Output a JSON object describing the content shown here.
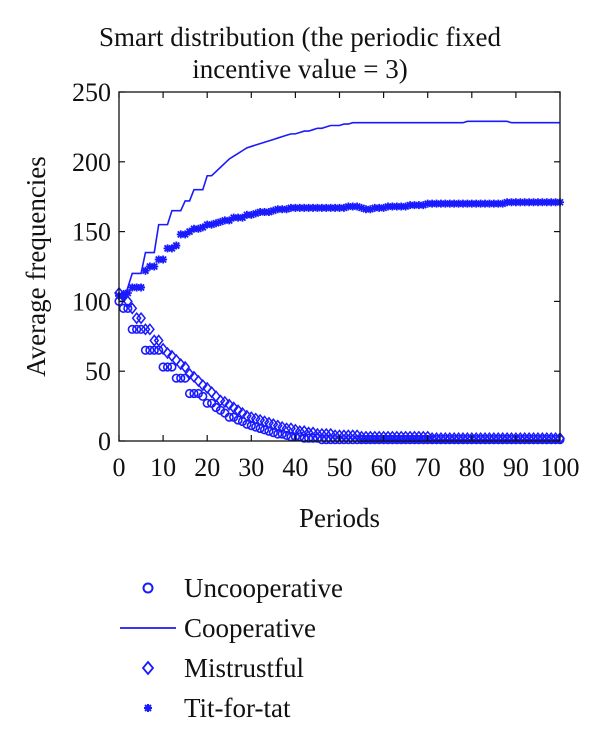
{
  "chart_data": {
    "type": "line",
    "title_line1": "Smart distribution (the periodic fixed",
    "title_line2": "incentive value = 3)",
    "xlabel": "Periods",
    "ylabel": "Average frequencies",
    "xlim": [
      0,
      100
    ],
    "ylim": [
      0,
      250
    ],
    "xticks": [
      0,
      10,
      20,
      30,
      40,
      50,
      60,
      70,
      80,
      90,
      100
    ],
    "yticks": [
      0,
      50,
      100,
      150,
      200,
      250
    ],
    "grid": false,
    "legend_position": "below",
    "color": "#1a1aff",
    "series": [
      {
        "name": "Uncooperative",
        "marker": "circle",
        "x": [
          0,
          1,
          2,
          3,
          4,
          5,
          6,
          7,
          8,
          9,
          10,
          11,
          12,
          13,
          14,
          15,
          16,
          17,
          18,
          19,
          20,
          21,
          22,
          23,
          24,
          25,
          26,
          27,
          28,
          29,
          30,
          31,
          32,
          33,
          34,
          35,
          36,
          37,
          38,
          39,
          40,
          41,
          42,
          43,
          44,
          45,
          46,
          47,
          48,
          49,
          50,
          51,
          52,
          53,
          54,
          55,
          56,
          57,
          58,
          59,
          60,
          61,
          62,
          63,
          64,
          65,
          66,
          67,
          68,
          69,
          70,
          71,
          72,
          73,
          74,
          75,
          76,
          77,
          78,
          79,
          80,
          81,
          82,
          83,
          84,
          85,
          86,
          87,
          88,
          89,
          90,
          91,
          92,
          93,
          94,
          95,
          96,
          97,
          98,
          99,
          100
        ],
        "values": [
          100,
          95,
          95,
          80,
          80,
          80,
          65,
          65,
          65,
          65,
          53,
          53,
          53,
          45,
          45,
          45,
          34,
          34,
          34,
          32,
          27,
          27,
          24,
          22,
          20,
          17,
          17,
          15,
          14,
          12,
          11,
          10,
          9,
          8,
          7,
          6,
          5,
          5,
          4,
          3,
          3,
          3,
          2,
          2,
          2,
          2,
          1,
          1,
          1,
          1,
          1,
          1,
          1,
          1,
          1,
          1,
          1,
          1,
          1,
          1,
          1,
          1,
          1,
          1,
          1,
          1,
          1,
          1,
          1,
          1,
          1,
          1,
          1,
          1,
          1,
          1,
          1,
          1,
          1,
          1,
          1,
          1,
          1,
          1,
          1,
          1,
          1,
          1,
          1,
          1,
          1,
          1,
          1,
          1,
          1,
          1,
          1,
          1,
          1,
          1,
          1
        ]
      },
      {
        "name": "Cooperative",
        "marker": "line",
        "x": [
          0,
          1,
          2,
          3,
          4,
          5,
          6,
          7,
          8,
          9,
          10,
          11,
          12,
          13,
          14,
          15,
          16,
          17,
          18,
          19,
          20,
          21,
          22,
          23,
          24,
          25,
          26,
          27,
          28,
          29,
          30,
          31,
          32,
          33,
          34,
          35,
          36,
          37,
          38,
          39,
          40,
          41,
          42,
          43,
          44,
          45,
          46,
          47,
          48,
          49,
          50,
          51,
          52,
          53,
          54,
          55,
          56,
          57,
          58,
          59,
          60,
          61,
          62,
          63,
          64,
          65,
          66,
          67,
          68,
          69,
          70,
          71,
          72,
          73,
          74,
          75,
          76,
          77,
          78,
          79,
          80,
          81,
          82,
          83,
          84,
          85,
          86,
          87,
          88,
          89,
          90,
          91,
          92,
          93,
          94,
          95,
          96,
          97,
          98,
          99,
          100
        ],
        "values": [
          100,
          100,
          110,
          120,
          120,
          120,
          135,
          135,
          135,
          155,
          155,
          155,
          165,
          165,
          165,
          172,
          172,
          180,
          180,
          180,
          190,
          190,
          193,
          196,
          199,
          202,
          204,
          206,
          208,
          210,
          211,
          212,
          213,
          214,
          215,
          216,
          217,
          218,
          219,
          220,
          220,
          221,
          222,
          222,
          223,
          224,
          224,
          225,
          226,
          226,
          226,
          227,
          227,
          228,
          228,
          228,
          228,
          228,
          228,
          228,
          228,
          228,
          228,
          228,
          228,
          228,
          228,
          228,
          228,
          228,
          228,
          228,
          228,
          228,
          228,
          228,
          228,
          228,
          228,
          229,
          229,
          229,
          229,
          229,
          229,
          229,
          229,
          229,
          229,
          228,
          228,
          228,
          228,
          228,
          228,
          228,
          228,
          228,
          228,
          228,
          228
        ]
      },
      {
        "name": "Mistrustful",
        "marker": "diamond",
        "x": [
          0,
          1,
          2,
          3,
          4,
          5,
          6,
          7,
          8,
          9,
          10,
          11,
          12,
          13,
          14,
          15,
          16,
          17,
          18,
          19,
          20,
          21,
          22,
          23,
          24,
          25,
          26,
          27,
          28,
          29,
          30,
          31,
          32,
          33,
          34,
          35,
          36,
          37,
          38,
          39,
          40,
          41,
          42,
          43,
          44,
          45,
          46,
          47,
          48,
          49,
          50,
          51,
          52,
          53,
          54,
          55,
          56,
          57,
          58,
          59,
          60,
          61,
          62,
          63,
          64,
          65,
          66,
          67,
          68,
          69,
          70,
          71,
          72,
          73,
          74,
          75,
          76,
          77,
          78,
          79,
          80,
          81,
          82,
          83,
          84,
          85,
          86,
          87,
          88,
          89,
          90,
          91,
          92,
          93,
          94,
          95,
          96,
          97,
          98,
          99,
          100
        ],
        "values": [
          106,
          104,
          100,
          95,
          88,
          88,
          80,
          80,
          72,
          72,
          66,
          63,
          61,
          58,
          55,
          53,
          48,
          46,
          43,
          40,
          38,
          35,
          32,
          29,
          28,
          26,
          24,
          22,
          20,
          18,
          17,
          16,
          15,
          14,
          13,
          12,
          11,
          10,
          9,
          9,
          8,
          7,
          7,
          6,
          6,
          5,
          5,
          5,
          5,
          4,
          4,
          4,
          4,
          4,
          4,
          3,
          3,
          3,
          3,
          3,
          3,
          3,
          3,
          3,
          3,
          3,
          3,
          3,
          3,
          3,
          3,
          2,
          2,
          2,
          2,
          2,
          2,
          2,
          2,
          2,
          2,
          2,
          2,
          2,
          2,
          2,
          2,
          2,
          2,
          2,
          2,
          2,
          2,
          2,
          2,
          2,
          2,
          2,
          2,
          2,
          2
        ]
      },
      {
        "name": "Tit-for-tat",
        "marker": "star",
        "x": [
          0,
          1,
          2,
          3,
          4,
          5,
          6,
          7,
          8,
          9,
          10,
          11,
          12,
          13,
          14,
          15,
          16,
          17,
          18,
          19,
          20,
          21,
          22,
          23,
          24,
          25,
          26,
          27,
          28,
          29,
          30,
          31,
          32,
          33,
          34,
          35,
          36,
          37,
          38,
          39,
          40,
          41,
          42,
          43,
          44,
          45,
          46,
          47,
          48,
          49,
          50,
          51,
          52,
          53,
          54,
          55,
          56,
          57,
          58,
          59,
          60,
          61,
          62,
          63,
          64,
          65,
          66,
          67,
          68,
          69,
          70,
          71,
          72,
          73,
          74,
          75,
          76,
          77,
          78,
          79,
          80,
          81,
          82,
          83,
          84,
          85,
          86,
          87,
          88,
          89,
          90,
          91,
          92,
          93,
          94,
          95,
          96,
          97,
          98,
          99,
          100
        ],
        "values": [
          104,
          104,
          106,
          110,
          110,
          110,
          122,
          125,
          125,
          130,
          130,
          138,
          138,
          140,
          148,
          148,
          150,
          152,
          152,
          153,
          155,
          155,
          156,
          157,
          158,
          158,
          160,
          160,
          160,
          162,
          162,
          163,
          164,
          164,
          164,
          165,
          166,
          166,
          166,
          167,
          167,
          167,
          167,
          167,
          167,
          167,
          167,
          167,
          167,
          167,
          167,
          167,
          168,
          168,
          168,
          167,
          166,
          166,
          167,
          167,
          167,
          168,
          168,
          168,
          168,
          168,
          169,
          169,
          169,
          169,
          170,
          170,
          170,
          170,
          170,
          170,
          170,
          170,
          170,
          170,
          170,
          170,
          170,
          170,
          170,
          170,
          170,
          170,
          171,
          171,
          171,
          171,
          171,
          171,
          171,
          171,
          171,
          171,
          171,
          171,
          171
        ]
      }
    ]
  }
}
